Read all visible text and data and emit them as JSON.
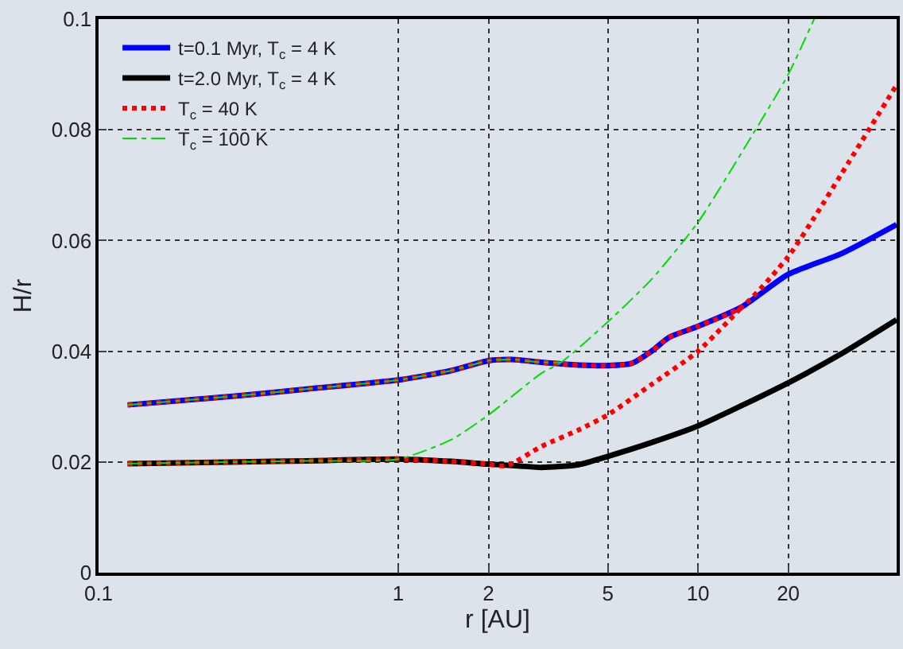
{
  "chart_data": {
    "type": "line",
    "xlabel": "r [AU]",
    "ylabel": "H/r",
    "log": "x",
    "xlim": [
      0.1,
      46
    ],
    "ylim": [
      0,
      0.1
    ],
    "xticks": [
      0.1,
      1,
      2,
      5,
      10,
      20
    ],
    "yticks": [
      0,
      0.02,
      0.04,
      0.06,
      0.08,
      0.1
    ],
    "grid": true,
    "legend": "top left",
    "marker": "none",
    "series": [
      {
        "name": "t=0.1 Myr, T$_{c}$ = 4 K",
        "color": "#0000ff",
        "line_style": "solid",
        "x": [
          0.125,
          0.3,
          0.5,
          1,
          1.5,
          2,
          2.4,
          3,
          4,
          5,
          6,
          7,
          8,
          10,
          14,
          20,
          30,
          46
        ],
        "values": [
          0.0303,
          0.032,
          0.0332,
          0.0348,
          0.0365,
          0.0383,
          0.0385,
          0.038,
          0.0375,
          0.0374,
          0.0378,
          0.04,
          0.0425,
          0.0445,
          0.048,
          0.0539,
          0.0576,
          0.0629
        ]
      },
      {
        "name": "t=2.0 Myr, T$_{c}$ = 4 K",
        "color": "#000000",
        "line_style": "solid",
        "x": [
          0.125,
          0.3,
          0.5,
          1,
          1.5,
          2,
          2.5,
          3,
          4,
          5,
          7,
          10,
          20,
          30,
          46
        ],
        "values": [
          0.0197,
          0.02,
          0.0202,
          0.0205,
          0.0201,
          0.0196,
          0.0193,
          0.019,
          0.0195,
          0.021,
          0.0235,
          0.0265,
          0.0343,
          0.0395,
          0.0457
        ]
      },
      {
        "name": "T$_{c}$ = 40 K",
        "color": "#ff0000",
        "line_style": "dotted",
        "x": [
          0.125,
          0.3,
          0.5,
          1,
          1.5,
          2,
          2.4,
          3,
          4,
          5,
          6,
          7,
          8,
          10,
          14,
          20,
          25,
          30,
          46,
          null,
          0.125,
          0.3,
          0.5,
          1,
          1.5,
          2,
          2.3,
          3,
          4,
          5,
          7,
          10,
          14
        ],
        "values": [
          0.0303,
          0.032,
          0.0332,
          0.0348,
          0.0365,
          0.0383,
          0.0385,
          0.038,
          0.0375,
          0.0374,
          0.0378,
          0.04,
          0.0425,
          0.0445,
          0.048,
          0.0571,
          0.065,
          0.0719,
          0.0881,
          null,
          0.0197,
          0.02,
          0.0202,
          0.0205,
          0.0201,
          0.0196,
          0.0193,
          0.0228,
          0.0258,
          0.0285,
          0.034,
          0.04,
          0.048
        ]
      },
      {
        "name": "T$_{c}$ = 100 K",
        "color": "#00dd00",
        "line_style": "dashdot",
        "x": [
          0.125,
          0.3,
          0.5,
          1,
          1.5,
          2,
          3,
          3.5,
          5,
          7,
          10,
          15,
          20,
          24.4,
          null,
          0.125,
          0.3,
          0.5,
          1,
          1.5,
          2,
          2.4,
          3,
          3.5
        ],
        "values": [
          0.0197,
          0.02,
          0.0202,
          0.0205,
          0.024,
          0.0285,
          0.036,
          0.038,
          0.0453,
          0.053,
          0.0633,
          0.0786,
          0.09,
          0.1,
          null,
          0.0303,
          0.032,
          0.0332,
          0.0348,
          0.0365,
          0.0383,
          0.0385,
          0.038,
          0.038
        ]
      }
    ]
  }
}
